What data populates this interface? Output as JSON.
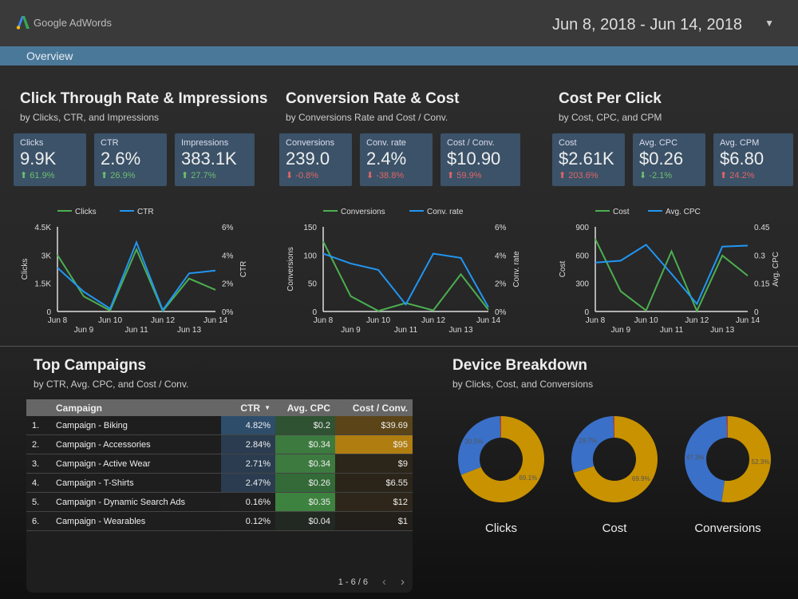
{
  "header": {
    "logo_text": "Google AdWords",
    "date_range": "Jun 8, 2018 - Jun 14, 2018",
    "dropdown_icon": "caret-down-icon"
  },
  "nav": {
    "tabs": [
      {
        "label": "Overview"
      }
    ]
  },
  "colors": {
    "nav": "#4a7899",
    "card": "#3b5268",
    "green": "#4caf50",
    "blue": "#2196f3",
    "gold": "#c89200",
    "donut_blue": "#3a70c8",
    "red": "#c0392b",
    "positive": "#6cc070",
    "negative": "#e06666"
  },
  "sections": [
    {
      "title": "Click Through Rate & Impressions",
      "subtitle": "by Clicks, CTR, and Impressions",
      "cards": [
        {
          "label": "Clicks",
          "value": "9.9K",
          "delta": "61.9%",
          "dir": "up",
          "good": true
        },
        {
          "label": "CTR",
          "value": "2.6%",
          "delta": "26.9%",
          "dir": "up",
          "good": true
        },
        {
          "label": "Impressions",
          "value": "383.1K",
          "delta": "27.7%",
          "dir": "up",
          "good": true
        }
      ]
    },
    {
      "title": "Conversion Rate & Cost",
      "subtitle": "by Conversions Rate and Cost / Conv.",
      "cards": [
        {
          "label": "Conversions",
          "value": "239.0",
          "delta": "-0.8%",
          "dir": "down",
          "good": false
        },
        {
          "label": "Conv. rate",
          "value": "2.4%",
          "delta": "-38.8%",
          "dir": "down",
          "good": false
        },
        {
          "label": "Cost / Conv.",
          "value": "$10.90",
          "delta": "59.9%",
          "dir": "up",
          "good": false
        }
      ]
    },
    {
      "title": "Cost Per Click",
      "subtitle": "by Cost, CPC, and CPM",
      "cards": [
        {
          "label": "Cost",
          "value": "$2.61K",
          "delta": "203.6%",
          "dir": "up",
          "good": false
        },
        {
          "label": "Avg. CPC",
          "value": "$0.26",
          "delta": "-2.1%",
          "dir": "down",
          "good": true
        },
        {
          "label": "Avg. CPM",
          "value": "$6.80",
          "delta": "24.2%",
          "dir": "up",
          "good": false
        }
      ]
    }
  ],
  "chart_data": [
    {
      "type": "line",
      "x": [
        "Jun 8",
        "Jun 9",
        "Jun 10",
        "Jun 11",
        "Jun 12",
        "Jun 13",
        "Jun 14"
      ],
      "ylabel": "Clicks",
      "y2label": "CTR",
      "ylim": [
        0,
        4500
      ],
      "y2lim": [
        0,
        6
      ],
      "yticks": [
        "0",
        "1.5K",
        "3K",
        "4.5K"
      ],
      "y2ticks": [
        "0%",
        "2%",
        "4%",
        "6%"
      ],
      "legend": "top",
      "series": [
        {
          "name": "Clicks",
          "axis": "left",
          "color": "#4caf50",
          "values": [
            3000,
            800,
            50,
            3300,
            30,
            1750,
            1150
          ]
        },
        {
          "name": "CTR",
          "axis": "right",
          "color": "#2196f3",
          "values": [
            3.1,
            1.4,
            0.2,
            4.9,
            0.1,
            2.7,
            2.9
          ]
        }
      ]
    },
    {
      "type": "line",
      "x": [
        "Jun 8",
        "Jun 9",
        "Jun 10",
        "Jun 11",
        "Jun 12",
        "Jun 13",
        "Jun 14"
      ],
      "ylabel": "Conversions",
      "y2label": "Conv. rate",
      "ylim": [
        0,
        150
      ],
      "y2lim": [
        0,
        6
      ],
      "yticks": [
        "0",
        "50",
        "100",
        "150"
      ],
      "y2ticks": [
        "0%",
        "2%",
        "4%",
        "6%"
      ],
      "legend": "top",
      "series": [
        {
          "name": "Conversions",
          "axis": "left",
          "color": "#4caf50",
          "values": [
            124,
            27,
            1,
            15,
            2,
            66,
            3
          ]
        },
        {
          "name": "Conv. rate",
          "axis": "right",
          "color": "#2196f3",
          "values": [
            4.1,
            3.4,
            2.95,
            0.5,
            4.1,
            3.8,
            0.3
          ]
        }
      ]
    },
    {
      "type": "line",
      "x": [
        "Jun 8",
        "Jun 9",
        "Jun 10",
        "Jun 11",
        "Jun 12",
        "Jun 13",
        "Jun 14"
      ],
      "ylabel": "Cost",
      "y2label": "Avg. CPC",
      "ylim": [
        0,
        900
      ],
      "y2lim": [
        0,
        0.45
      ],
      "yticks": [
        "0",
        "300",
        "600",
        "900"
      ],
      "y2ticks": [
        "0",
        "0.15",
        "0.3",
        "0.45"
      ],
      "legend": "top",
      "series": [
        {
          "name": "Cost",
          "axis": "left",
          "color": "#4caf50",
          "values": [
            770,
            215,
            10,
            640,
            5,
            595,
            380
          ]
        },
        {
          "name": "Avg. CPC",
          "axis": "right",
          "color": "#2196f3",
          "values": [
            0.26,
            0.27,
            0.355,
            0.2,
            0.04,
            0.345,
            0.35
          ]
        }
      ]
    },
    {
      "type": "pie",
      "title": "Clicks",
      "slices": [
        {
          "value": 69.1,
          "label": "69.1%",
          "color": "#c89200"
        },
        {
          "value": 30.5,
          "label": "30.5%",
          "color": "#3a70c8"
        },
        {
          "value": 0.4,
          "label": "",
          "color": "#c0392b"
        }
      ]
    },
    {
      "type": "pie",
      "title": "Cost",
      "slices": [
        {
          "value": 69.9,
          "label": "69.9%",
          "color": "#c89200"
        },
        {
          "value": 29.7,
          "label": "29.7%",
          "color": "#3a70c8"
        },
        {
          "value": 0.4,
          "label": "",
          "color": "#c0392b"
        }
      ]
    },
    {
      "type": "pie",
      "title": "Conversions",
      "slices": [
        {
          "value": 52.3,
          "label": "52.3%",
          "color": "#c89200"
        },
        {
          "value": 47.3,
          "label": "47.3%",
          "color": "#3a70c8"
        },
        {
          "value": 0.4,
          "label": "",
          "color": "#c0392b"
        }
      ]
    }
  ],
  "campaigns": {
    "title": "Top Campaigns",
    "subtitle": "by CTR, Avg. CPC, and Cost / Conv.",
    "headers": [
      "",
      "Campaign",
      "CTR",
      "Avg. CPC",
      "Cost / Conv."
    ],
    "sort_icon": "sort-desc-icon",
    "rows": [
      {
        "n": "1.",
        "name": "Campaign - Biking",
        "ctr": "4.82%",
        "cpc": "$0.2",
        "cpconv": "$39.69",
        "bg": [
          "#2e4d6b",
          "#2f5232",
          "#5a4418"
        ]
      },
      {
        "n": "2.",
        "name": "Campaign - Accessories",
        "ctr": "2.84%",
        "cpc": "$0.34",
        "cpconv": "$95",
        "bg": [
          "#2b3c50",
          "#3d7a3f",
          "#b07d10"
        ]
      },
      {
        "n": "3.",
        "name": "Campaign - Active Wear",
        "ctr": "2.71%",
        "cpc": "$0.34",
        "cpconv": "$9",
        "bg": [
          "#2b3c50",
          "#3d7a3f",
          "#2c2519"
        ]
      },
      {
        "n": "4.",
        "name": "Campaign - T-Shirts",
        "ctr": "2.47%",
        "cpc": "$0.26",
        "cpconv": "$6.55",
        "bg": [
          "#2b3c50",
          "#336a37",
          "#2b2419"
        ]
      },
      {
        "n": "5.",
        "name": "Campaign - Dynamic Search Ads",
        "ctr": "0.16%",
        "cpc": "$0.35",
        "cpconv": "$12",
        "bg": [
          "#1f1f1f",
          "#3e8240",
          "#2e261a"
        ]
      },
      {
        "n": "6.",
        "name": "Campaign - Wearables",
        "ctr": "0.12%",
        "cpc": "$0.04",
        "cpconv": "$1",
        "bg": [
          "#1f1f1f",
          "#222822",
          "#221f1a"
        ]
      }
    ],
    "pager": "1 - 6 / 6"
  },
  "devices": {
    "title": "Device Breakdown",
    "subtitle": "by Clicks, Cost, and Conversions"
  }
}
